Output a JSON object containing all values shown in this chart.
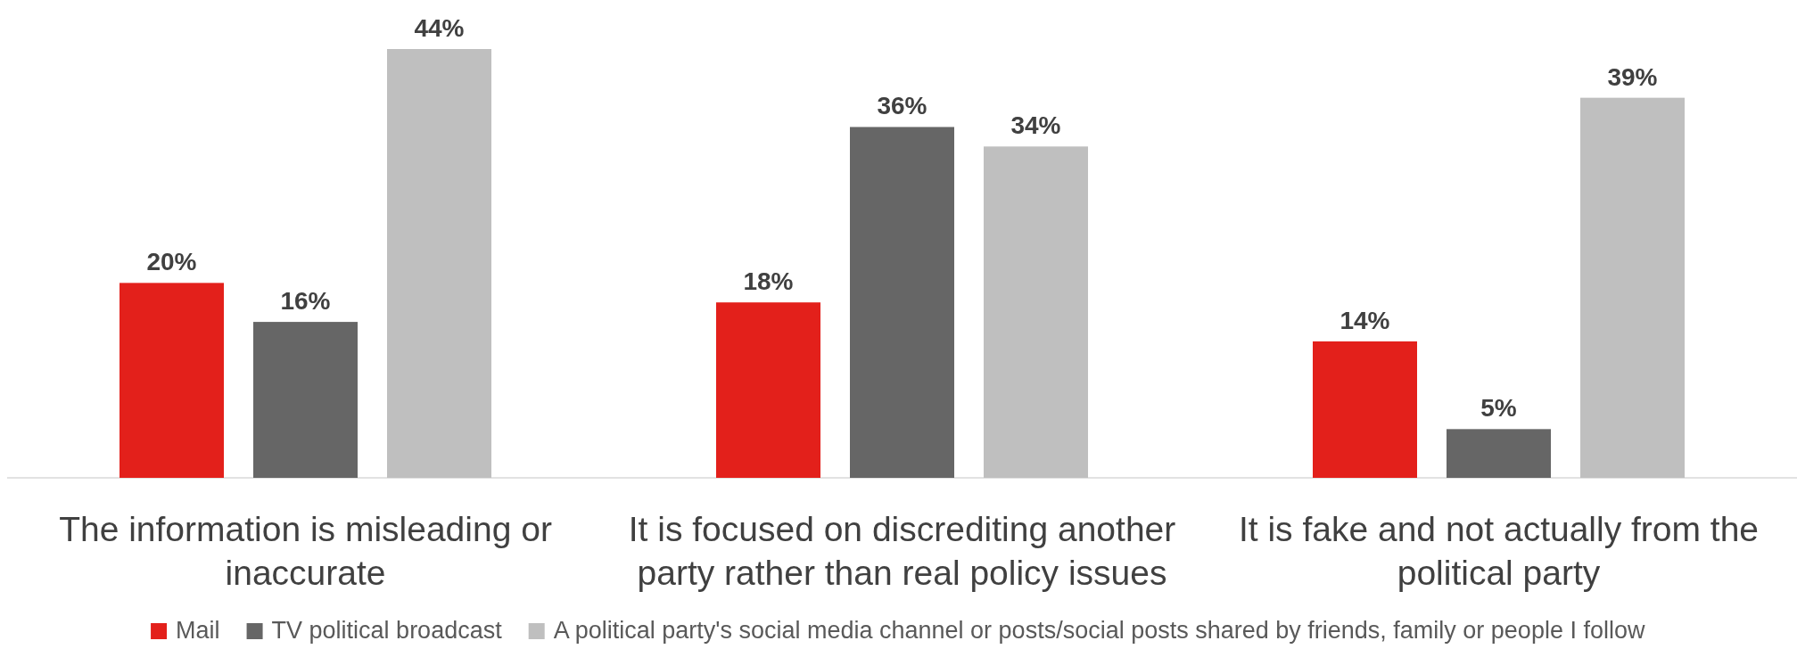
{
  "chart_data": {
    "type": "bar",
    "categories": [
      "The information is misleading or inaccurate",
      "It is focused on discrediting another party rather than real policy issues",
      "It is fake and not actually from the political party"
    ],
    "series": [
      {
        "name": "Mail",
        "color": "#e3201b",
        "values": [
          20,
          18,
          14
        ],
        "value_labels": [
          "20%",
          "18%",
          "14%"
        ]
      },
      {
        "name": "TV political broadcast",
        "color": "#666666",
        "values": [
          16,
          36,
          5
        ],
        "value_labels": [
          "16%",
          "36%",
          "5%"
        ]
      },
      {
        "name": "A political party's social media channel or posts/social posts shared by friends, family or people I follow",
        "color": "#bfbfbf",
        "values": [
          44,
          34,
          39
        ],
        "value_labels": [
          "44%",
          "34%",
          "39%"
        ]
      }
    ],
    "legend": "bottom"
  }
}
